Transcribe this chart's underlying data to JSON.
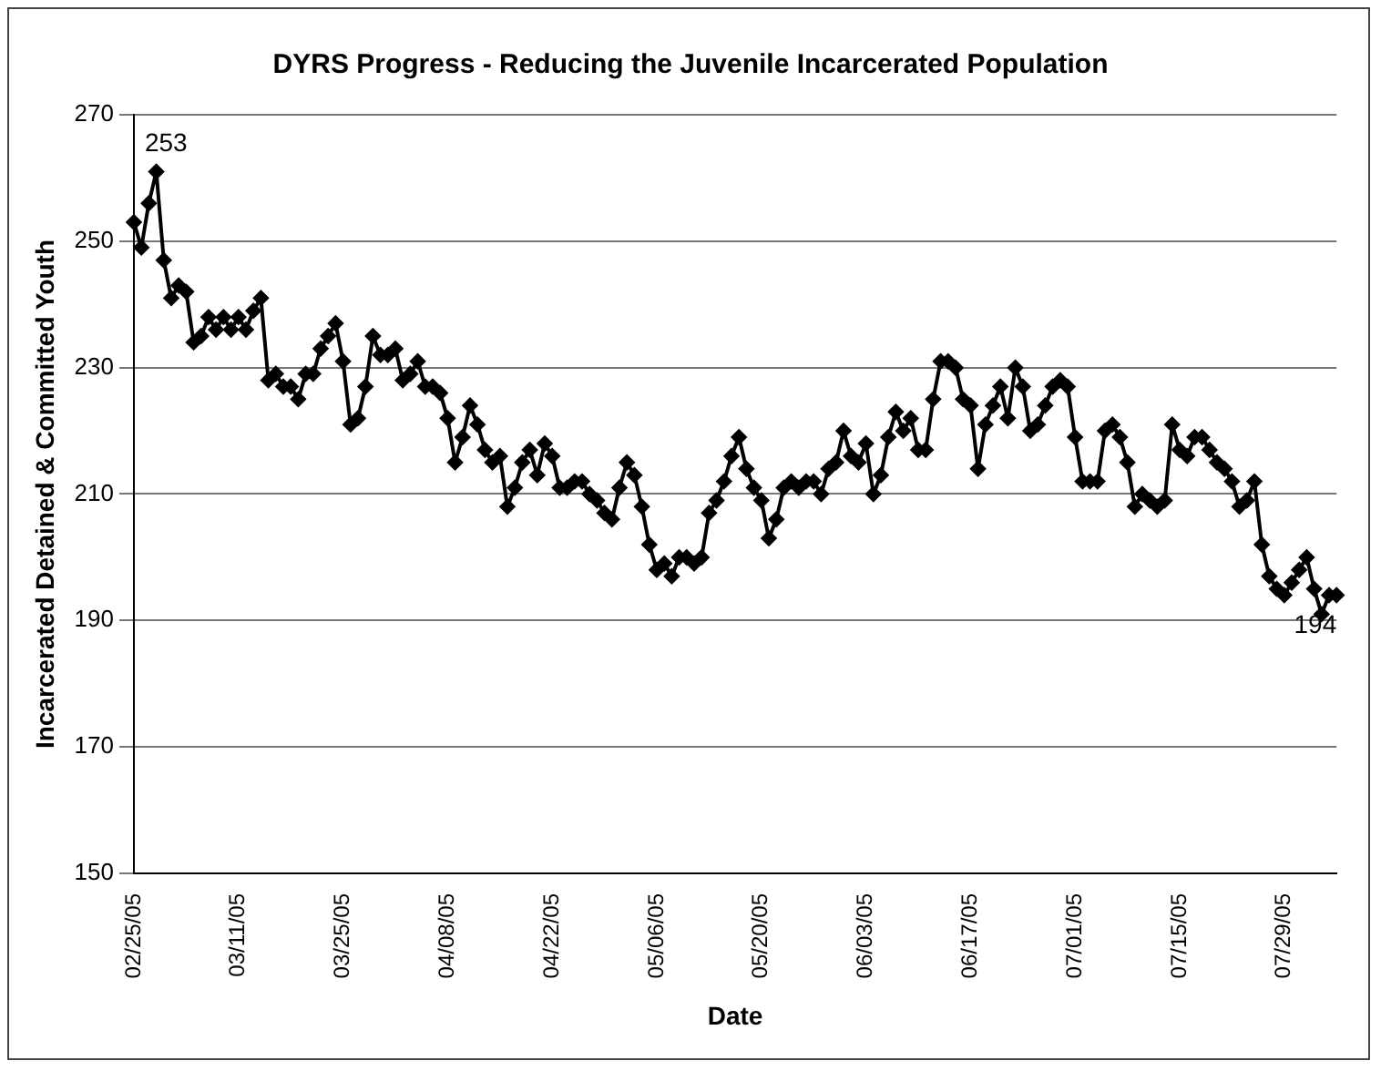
{
  "chart_data": {
    "type": "line",
    "title": "DYRS Progress - Reducing the Juvenile Incarcerated Population",
    "xlabel": "Date",
    "ylabel": "Incarcerated Detained & Committed Youth",
    "categories": [
      "02/25/05",
      null,
      null,
      null,
      null,
      null,
      null,
      null,
      null,
      null,
      null,
      null,
      null,
      null,
      "03/11/05",
      null,
      null,
      null,
      null,
      null,
      null,
      null,
      null,
      null,
      null,
      null,
      null,
      null,
      "03/25/05",
      null,
      null,
      null,
      null,
      null,
      null,
      null,
      null,
      null,
      null,
      null,
      null,
      null,
      "04/08/05",
      null,
      null,
      null,
      null,
      null,
      null,
      null,
      null,
      null,
      null,
      null,
      null,
      null,
      "04/22/05",
      null,
      null,
      null,
      null,
      null,
      null,
      null,
      null,
      null,
      null,
      null,
      null,
      null,
      "05/06/05",
      null,
      null,
      null,
      null,
      null,
      null,
      null,
      null,
      null,
      null,
      null,
      null,
      null,
      "05/20/05",
      null,
      null,
      null,
      null,
      null,
      null,
      null,
      null,
      null,
      null,
      null,
      null,
      null,
      "06/03/05",
      null,
      null,
      null,
      null,
      null,
      null,
      null,
      null,
      null,
      null,
      null,
      null,
      null,
      "06/17/05",
      null,
      null,
      null,
      null,
      null,
      null,
      null,
      null,
      null,
      null,
      null,
      null,
      null,
      "07/01/05",
      null,
      null,
      null,
      null,
      null,
      null,
      null,
      null,
      null,
      null,
      null,
      null,
      null,
      "07/15/05",
      null,
      null,
      null,
      null,
      null,
      null,
      null,
      null,
      null,
      null,
      null,
      null,
      null,
      "07/29/05",
      null,
      null,
      null,
      null,
      null,
      null,
      null
    ],
    "series": [
      {
        "color": "#000000",
        "values": [
          253,
          249,
          256,
          261,
          247,
          241,
          243,
          242,
          234,
          235,
          238,
          236,
          238,
          236,
          238,
          236,
          239,
          241,
          228,
          229,
          227,
          227,
          225,
          229,
          229,
          233,
          235,
          237,
          231,
          221,
          222,
          227,
          235,
          232,
          232,
          233,
          228,
          229,
          231,
          227,
          227,
          226,
          222,
          215,
          219,
          224,
          221,
          217,
          215,
          216,
          208,
          211,
          215,
          217,
          213,
          218,
          216,
          211,
          211,
          212,
          212,
          210,
          209,
          207,
          206,
          211,
          215,
          213,
          208,
          202,
          198,
          199,
          197,
          200,
          200,
          199,
          200,
          207,
          209,
          212,
          216,
          219,
          214,
          211,
          209,
          203,
          206,
          211,
          212,
          211,
          212,
          212,
          210,
          214,
          215,
          220,
          216,
          215,
          218,
          210,
          213,
          219,
          223,
          220,
          222,
          217,
          217,
          225,
          231,
          231,
          230,
          225,
          224,
          214,
          221,
          224,
          227,
          222,
          230,
          227,
          220,
          221,
          224,
          227,
          228,
          227,
          219,
          212,
          212,
          212,
          220,
          221,
          219,
          215,
          208,
          210,
          209,
          208,
          209,
          221,
          217,
          216,
          219,
          219,
          217,
          215,
          214,
          212,
          208,
          209,
          212,
          202,
          197,
          195,
          194,
          196,
          198,
          200,
          195,
          191,
          194,
          194
        ]
      }
    ],
    "ylim": [
      150,
      270
    ],
    "yticks": [
      150,
      170,
      190,
      210,
      230,
      250,
      270
    ],
    "grid": "y",
    "legend": false,
    "marker": "diamond",
    "line_style": "solid",
    "annotations": [
      {
        "text": "253",
        "x": "02/25/05",
        "y": 253
      },
      {
        "text": "194",
        "y": 194
      }
    ]
  }
}
